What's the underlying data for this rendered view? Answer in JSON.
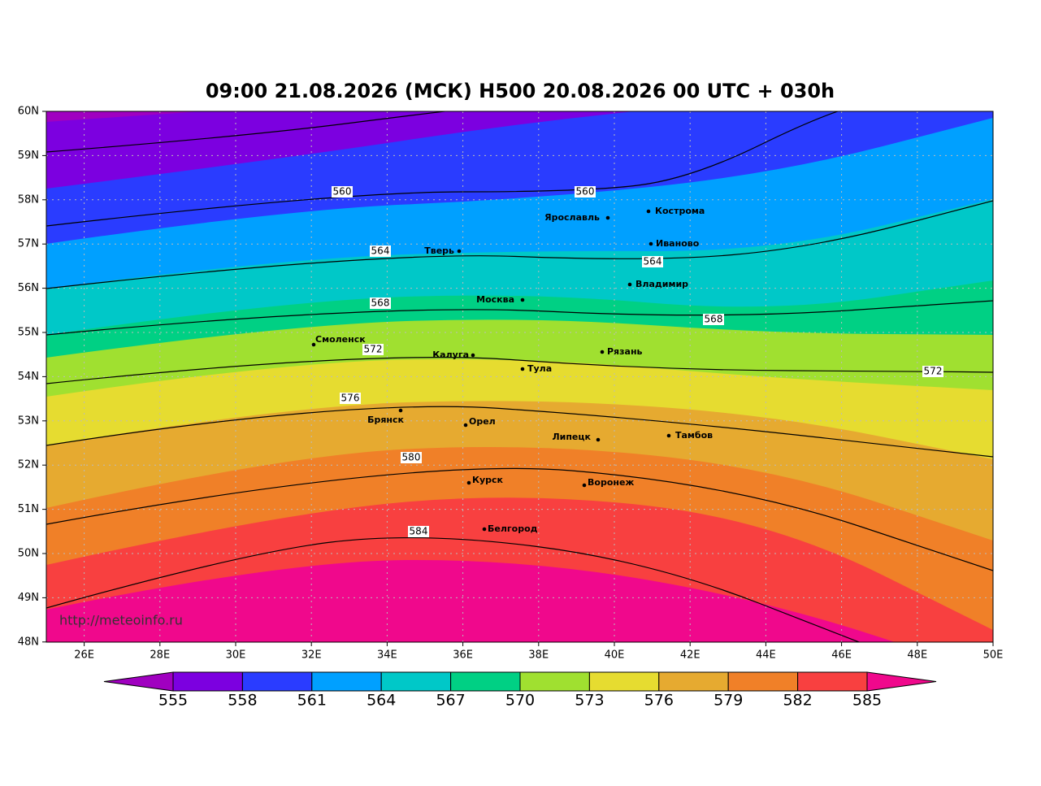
{
  "header": {
    "title": "09:00 21.08.2026 (МСК) H500  20.08.2026 00 UTC + 030h"
  },
  "map": {
    "lat_labels": [
      "60N",
      "59N",
      "58N",
      "57N",
      "56N",
      "55N",
      "54N",
      "53N",
      "52N",
      "51N",
      "50N",
      "49N",
      "48N"
    ],
    "lon_labels": [
      "26E",
      "28E",
      "30E",
      "32E",
      "34E",
      "36E",
      "38E",
      "40E",
      "42E",
      "44E",
      "46E",
      "48E",
      "50E"
    ],
    "cities": [
      "Кострома",
      "Ярославль",
      "Тверь",
      "Иваново",
      "Владимир",
      "Москва",
      "Смоленск",
      "Калуга",
      "Рязань",
      "Тула",
      "Брянск",
      "Орел",
      "Липецк",
      "Тамбов",
      "Курск",
      "Воронеж",
      "Белгород"
    ],
    "contour_labels": [
      "560",
      "560",
      "564",
      "564",
      "568",
      "568",
      "572",
      "572",
      "576",
      "580",
      "584"
    ],
    "watermark": "http://meteoinfo.ru"
  },
  "colorbar": {
    "ticks": [
      555,
      558,
      561,
      564,
      567,
      570,
      573,
      576,
      579,
      582,
      585
    ],
    "colors": [
      "#a000c0",
      "#7c00e0",
      "#2a3cff",
      "#00a0ff",
      "#00c8c8",
      "#00d084",
      "#a0e030",
      "#e6dc30",
      "#e6aa30",
      "#f08028",
      "#f84040",
      "#f0088c"
    ]
  }
}
